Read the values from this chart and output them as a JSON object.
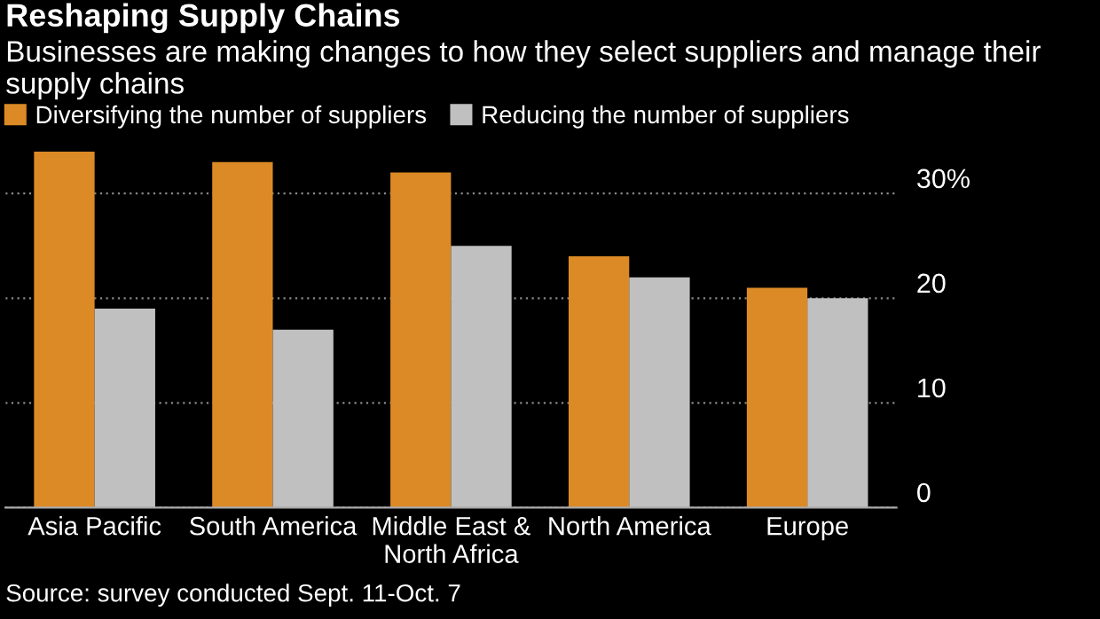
{
  "chart_data": {
    "type": "bar",
    "title": "Reshaping Supply Chains",
    "subtitle": "Businesses are making changes to how they select suppliers and manage their supply chains",
    "categories": [
      "Asia Pacific",
      "South America",
      "Middle East &\nNorth Africa",
      "North America",
      "Europe"
    ],
    "series": [
      {
        "name": "Diversifying the number of suppliers",
        "color": "#dc8a26",
        "values": [
          34,
          33,
          32,
          24,
          21
        ]
      },
      {
        "name": "Reducing the number of suppliers",
        "color": "#c0c0c0",
        "values": [
          19,
          17,
          25,
          22,
          20
        ]
      }
    ],
    "ylim": [
      0,
      34
    ],
    "yticks": [
      0,
      10,
      20,
      {
        "value": 30,
        "label": "30%"
      }
    ],
    "grid": "y",
    "legend": "top left",
    "annotations": [
      "Source: survey conducted Sept. 11-Oct. 7"
    ]
  }
}
